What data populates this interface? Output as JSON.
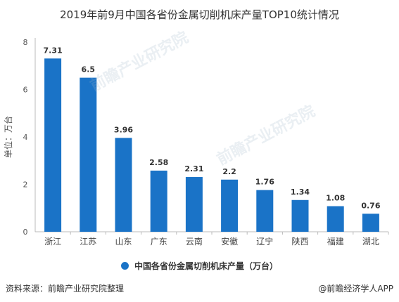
{
  "chart_data": {
    "type": "bar",
    "title": "2019年前9月中国各省份金属切削机床产量TOP10统计情况",
    "ylabel": "单位：万台",
    "xlabel": "",
    "categories": [
      "浙江",
      "江苏",
      "山东",
      "广东",
      "云南",
      "安徽",
      "辽宁",
      "陕西",
      "福建",
      "湖北"
    ],
    "series": [
      {
        "name": "中国各省份金属切削机床产量（万台）",
        "values": [
          7.31,
          6.5,
          3.96,
          2.58,
          2.31,
          2.2,
          1.76,
          1.34,
          1.08,
          0.76
        ],
        "labels": [
          "7.31",
          "6.5",
          "3.96",
          "2.58",
          "2.31",
          "2.2",
          "1.76",
          "1.34",
          "1.08",
          "0.76"
        ]
      }
    ],
    "ylim": [
      0,
      8
    ],
    "yticks": [
      0,
      2,
      4,
      6,
      8
    ],
    "grid": false,
    "legend_position": "bottom",
    "bar_color": "#1a73c7"
  },
  "source": "资料来源：前瞻产业研究院整理",
  "brand": "@前瞻经济学人APP",
  "watermark": "前瞻产业研究院"
}
